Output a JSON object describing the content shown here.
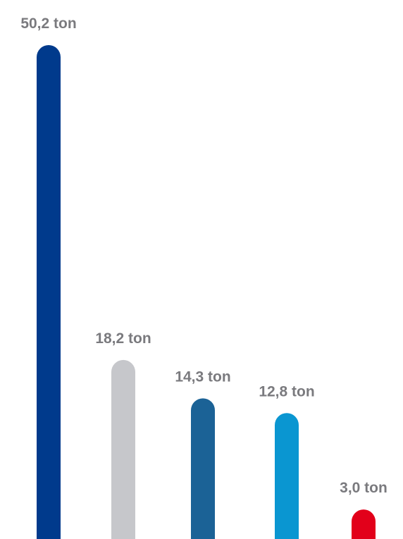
{
  "chart_data": {
    "type": "bar",
    "categories": [
      "",
      "",
      "",
      "",
      ""
    ],
    "values": [
      50.2,
      18.2,
      14.3,
      12.8,
      3.0
    ],
    "labels": [
      "50,2 ton",
      "18,2 ton",
      "14,3 ton",
      "12,8 ton",
      "3,0 ton"
    ],
    "colors": [
      "#003a8c",
      "#c6c7cb",
      "#1b6296",
      "#0a96d1",
      "#e2001a"
    ],
    "unit": "ton",
    "title": "",
    "xlabel": "",
    "ylabel": "",
    "ylim": [
      0,
      50.2
    ],
    "grid": false,
    "legend": "none",
    "axes_visible": false
  }
}
